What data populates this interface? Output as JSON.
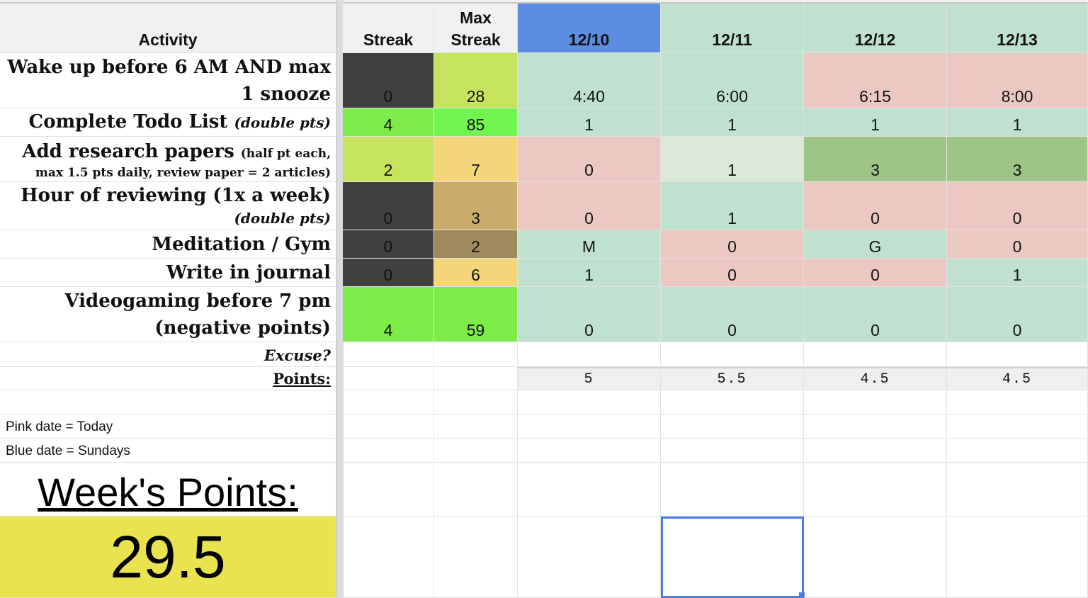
{
  "headers": {
    "activity": "Activity",
    "streak": "Streak",
    "max_streak_line1": "Max",
    "max_streak_line2": "Streak",
    "dates": [
      "12/10",
      "12/11",
      "12/12",
      "12/13"
    ]
  },
  "colors": {
    "sunday_blue": "#5b8de2",
    "date_green": "#c0e1cf",
    "cell_green": "#c0e1cf",
    "cell_pink": "#ecc8c2",
    "cell_light": "#dde9d8",
    "cell_dark_green": "#9ec487",
    "streak_dark": "#404040",
    "streak_lime": "#c6e35e",
    "streak_bright": "#7dec48",
    "maxstreak_yellow": "#f3d57a",
    "maxstreak_tan": "#c9ac6a",
    "maxstreak_brown": "#9e8a5e",
    "points_bg": "#e8e34f"
  },
  "rows": [
    {
      "line1": "Wake up before 6 AM AND max",
      "line2": "1 snooze",
      "streak": "0",
      "max_streak": "28",
      "values": [
        "4:40",
        "6:00",
        "6:15",
        "8:00"
      ]
    },
    {
      "line1": "Complete Todo List",
      "sub": "(double pts)",
      "streak": "4",
      "max_streak": "85",
      "values": [
        "1",
        "1",
        "1",
        "1"
      ]
    },
    {
      "line1": "Add research papers",
      "note1": "(half pt each,",
      "note2": "max 1.5 pts daily, review paper = 2 articles)",
      "streak": "2",
      "max_streak": "7",
      "values": [
        "0",
        "1",
        "3",
        "3"
      ]
    },
    {
      "line1": "Hour of reviewing (1x a week)",
      "sub": "(double pts)",
      "streak": "0",
      "max_streak": "3",
      "values": [
        "0",
        "1",
        "0",
        "0"
      ]
    },
    {
      "line1": "Meditation / Gym",
      "streak": "0",
      "max_streak": "2",
      "values": [
        "M",
        "0",
        "G",
        "0"
      ]
    },
    {
      "line1": "Write in journal",
      "streak": "0",
      "max_streak": "6",
      "values": [
        "1",
        "0",
        "0",
        "1"
      ]
    },
    {
      "line1": "Videogaming before 7 pm",
      "line2": "(negative points)",
      "streak": "4",
      "max_streak": "59",
      "values": [
        "0",
        "0",
        "0",
        "0"
      ]
    }
  ],
  "excuse_label": "Excuse?",
  "points_label": "Points:",
  "daily_points": [
    "5",
    "5.5",
    "4.5",
    "4.5"
  ],
  "legend": {
    "pink": "Pink date = Today",
    "blue": "Blue date = Sundays"
  },
  "week_points_label": "Week's Points:",
  "week_points_value": "29.5"
}
